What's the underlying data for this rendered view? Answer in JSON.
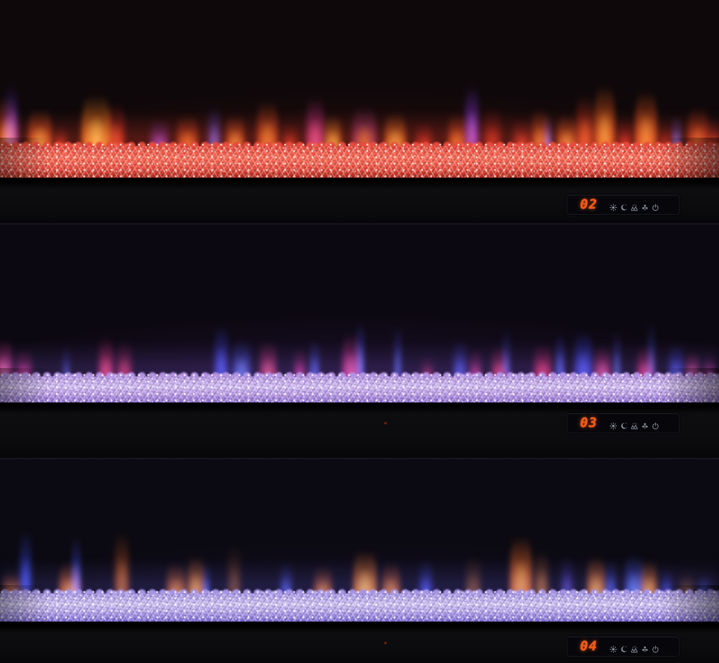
{
  "scene": {
    "title": "Linear electric fireplace shown in three flame color modes",
    "strips": [
      {
        "name": "flame-mode-2-red",
        "display_value": "02",
        "bed": {
          "top": "#e84a3c",
          "bright": "#ff6a55",
          "low": "#b02618",
          "glow": "rgba(255,70,45,0.32)",
          "sparkle": "rgba(255,225,215,0.85)",
          "base_tint": "rgba(150,30,22,0.30)",
          "base_color": "#0e080a"
        },
        "flames": [
          [
            -6,
            30,
            92,
            "#ff9a3c",
            "#dd3a12",
            0.95
          ],
          [
            6,
            20,
            112,
            "#8a6aff",
            "#4a2cd8",
            0.8
          ],
          [
            40,
            34,
            72,
            "#ffc04a",
            "#ff5a1a",
            0.95
          ],
          [
            76,
            20,
            46,
            "#ef4722",
            "#a01a10",
            0.9
          ],
          [
            116,
            42,
            96,
            "#ffd75a",
            "#ff7c16",
            1
          ],
          [
            152,
            26,
            82,
            "#ff5a2e",
            "#c02012",
            0.9
          ],
          [
            214,
            26,
            56,
            "#b05ae8",
            "#6a2cc0",
            0.85
          ],
          [
            252,
            30,
            62,
            "#ff8c2a",
            "#e0441a",
            0.9
          ],
          [
            296,
            18,
            76,
            "#6a78ff",
            "#3340d0",
            0.85
          ],
          [
            322,
            26,
            62,
            "#ffb144",
            "#ff5e1c",
            0.9
          ],
          [
            366,
            30,
            86,
            "#ff9a30",
            "#e04a16",
            0.9
          ],
          [
            402,
            22,
            50,
            "#e8401f",
            "#a51a0f",
            0.85
          ],
          [
            436,
            26,
            92,
            "#ff5fae",
            "#cf2a8c",
            0.85
          ],
          [
            462,
            24,
            62,
            "#ffd24f",
            "#ff8c1c",
            0.9
          ],
          [
            502,
            34,
            76,
            "#ff8c2a",
            "#b23a8a",
            0.85
          ],
          [
            548,
            30,
            66,
            "#ffc84e",
            "#ff7a18",
            0.9
          ],
          [
            592,
            24,
            52,
            "#ea3a20",
            "#a81710",
            0.85
          ],
          [
            638,
            26,
            66,
            "#ff8e2c",
            "#df4816",
            0.9
          ],
          [
            662,
            20,
            112,
            "#c06aff",
            "#7a2ce0",
            0.9
          ],
          [
            688,
            26,
            76,
            "#d5301c",
            "#8a140c",
            0.85
          ],
          [
            730,
            26,
            56,
            "#ea4a2a",
            "#b02012",
            0.85
          ],
          [
            757,
            24,
            72,
            "#ff9a3e",
            "#e05014",
            0.9
          ],
          [
            774,
            13,
            62,
            "#6a7aff",
            "#3545d2",
            0.8
          ],
          [
            793,
            28,
            62,
            "#ffb347",
            "#ff681a",
            0.9
          ],
          [
            820,
            26,
            96,
            "#ff6e2c",
            "#d02f10",
            0.9
          ],
          [
            846,
            30,
            112,
            "#ffbb42",
            "#ff5a12",
            0.95
          ],
          [
            879,
            22,
            56,
            "#ea3a20",
            "#a81610",
            0.85
          ],
          [
            904,
            32,
            102,
            "#ffa83e",
            "#ff5a16",
            0.95
          ],
          [
            938,
            20,
            50,
            "#da301a",
            "#921408",
            0.8
          ],
          [
            956,
            15,
            62,
            "#6e7eff",
            "#3a48d6",
            0.8
          ],
          [
            979,
            30,
            76,
            "#ff7e30",
            "#d83a12",
            0.9
          ],
          [
            1006,
            22,
            56,
            "#ea481f",
            "#aa1c0e",
            0.85
          ]
        ]
      },
      {
        "name": "flame-mode-3-purple",
        "display_value": "03",
        "bed": {
          "top": "#b392e4",
          "bright": "#d4bcf6",
          "low": "#8f6fd4",
          "glow": "rgba(150,110,255,0.22)",
          "sparkle": "rgba(255,255,255,0.85)",
          "base_tint": "rgba(110,62,190,0.22)",
          "base_color": "#0c0811"
        },
        "flames": [
          [
            -8,
            26,
            72,
            "#ff7ab4",
            "#dd2f88",
            0.9
          ],
          [
            22,
            24,
            56,
            "#ea399c",
            "#ab1f68",
            0.85
          ],
          [
            88,
            13,
            62,
            "#5a6aff",
            "#3240cc",
            0.5
          ],
          [
            140,
            22,
            76,
            "#ff4a70",
            "#cc2058",
            0.9
          ],
          [
            166,
            22,
            70,
            "#ea3a5e",
            "#a41844",
            0.85
          ],
          [
            305,
            20,
            96,
            "#4a5aff",
            "#2a34cc",
            0.9
          ],
          [
            331,
            26,
            72,
            "#6c8cff",
            "#3446dd",
            0.85
          ],
          [
            370,
            24,
            70,
            "#ff5a80",
            "#cc2a5e",
            0.85
          ],
          [
            418,
            18,
            58,
            "#ea3a9c",
            "#ab1f68",
            0.8
          ],
          [
            440,
            16,
            72,
            "#5a6aff",
            "#3240cc",
            0.75
          ],
          [
            487,
            26,
            82,
            "#ff57a2",
            "#ce2a7e",
            0.9
          ],
          [
            506,
            14,
            102,
            "#6a7aff",
            "#3443d8",
            0.75
          ],
          [
            560,
            13,
            96,
            "#5a7aff",
            "#2f3ed2",
            0.6
          ],
          [
            600,
            18,
            44,
            "#ea3a5e",
            "#a41844",
            0.7
          ],
          [
            645,
            20,
            72,
            "#4a5af2",
            "#2a35bf",
            0.85
          ],
          [
            668,
            18,
            56,
            "#ea399c",
            "#ab1f68",
            0.8
          ],
          [
            700,
            22,
            62,
            "#ff4a6e",
            "#c41f50",
            0.85
          ],
          [
            714,
            14,
            88,
            "#5a6aff",
            "#3240cc",
            0.6
          ],
          [
            760,
            26,
            66,
            "#ff3a6c",
            "#bd1848",
            0.9
          ],
          [
            790,
            15,
            82,
            "#5a6aff",
            "#3040cc",
            0.75
          ],
          [
            818,
            26,
            86,
            "#4a5aff",
            "#2836d6",
            0.9
          ],
          [
            846,
            24,
            62,
            "#ff5a9e",
            "#d62a76",
            0.85
          ],
          [
            872,
            13,
            86,
            "#6a8aff",
            "#3a4adf",
            0.55
          ],
          [
            907,
            24,
            62,
            "#ff4a8e",
            "#c92064",
            0.85
          ],
          [
            921,
            13,
            102,
            "#5a7aff",
            "#3344d4",
            0.5
          ],
          [
            952,
            22,
            66,
            "#4a5af2",
            "#2a35c4",
            0.85
          ],
          [
            976,
            20,
            52,
            "#ff6aae",
            "#d6347a",
            0.8
          ],
          [
            1001,
            18,
            46,
            "#ea399c",
            "#ab1f68",
            0.75
          ]
        ]
      },
      {
        "name": "flame-mode-4-blue-orange",
        "display_value": "04",
        "bed": {
          "top": "#a694e8",
          "bright": "#cfc2f6",
          "low": "#7a68d4",
          "glow": "rgba(120,110,250,0.20)",
          "sparkle": "rgba(255,255,255,0.85)",
          "base_tint": "rgba(86,70,200,0.18)",
          "base_color": "#0b0911"
        },
        "flames": [
          [
            4,
            26,
            46,
            "#ff9a38",
            "#dd5f16",
            0.85
          ],
          [
            28,
            17,
            116,
            "#4a5aff",
            "#2836cc",
            0.9
          ],
          [
            84,
            30,
            62,
            "#ffa83e",
            "#ff6a18",
            0.9
          ],
          [
            101,
            15,
            106,
            "#5a6aff",
            "#3040d4",
            0.8
          ],
          [
            163,
            21,
            112,
            "#ff8c2a",
            "#d25510",
            0.7
          ],
          [
            237,
            28,
            62,
            "#ff9a36",
            "#dd6018",
            0.85
          ],
          [
            267,
            24,
            72,
            "#ffb347",
            "#ff7a1e",
            0.9
          ],
          [
            287,
            13,
            62,
            "#5a6aff",
            "#3240cc",
            0.75
          ],
          [
            324,
            19,
            92,
            "#d8792a",
            "#9a4e10",
            0.5
          ],
          [
            399,
            17,
            62,
            "#5a6aff",
            "#3240d2",
            0.8
          ],
          [
            447,
            26,
            56,
            "#ff9a36",
            "#dd6018",
            0.85
          ],
          [
            503,
            34,
            82,
            "#ffc24e",
            "#ff7a16",
            0.95
          ],
          [
            544,
            26,
            62,
            "#ff9a36",
            "#e66418",
            0.85
          ],
          [
            597,
            19,
            66,
            "#4a5aff",
            "#2a34c8",
            0.85
          ],
          [
            663,
            22,
            72,
            "#d87c2c",
            "#a2550f",
            0.55
          ],
          [
            726,
            32,
            106,
            "#ffab3e",
            "#ff6a12",
            0.95
          ],
          [
            761,
            20,
            82,
            "#ea8a2c",
            "#b25a10",
            0.7
          ],
          [
            799,
            17,
            72,
            "#6a5ae8",
            "#4030bd",
            0.7
          ],
          [
            836,
            26,
            72,
            "#ffb347",
            "#ff7a1c",
            0.9
          ],
          [
            861,
            17,
            66,
            "#5a6aff",
            "#3240d2",
            0.8
          ],
          [
            890,
            26,
            76,
            "#6c8cff",
            "#3a4ae0",
            0.9
          ],
          [
            912,
            24,
            66,
            "#ffb347",
            "#ff7a1c",
            0.9
          ],
          [
            941,
            17,
            52,
            "#4a5aff",
            "#2a34c8",
            0.8
          ],
          [
            967,
            22,
            46,
            "#da8a2c",
            "#a0570e",
            0.55
          ],
          [
            994,
            17,
            42,
            "#5a6aff",
            "#3545cc",
            0.7
          ]
        ]
      }
    ],
    "panel": {
      "digit_color": "#ff5714",
      "digit_glow": "rgba(255,90,20,0.8)",
      "icon_color": "#9aa3b2",
      "icons": [
        {
          "name": "brightness-icon"
        },
        {
          "name": "sleep-timer-icon"
        },
        {
          "name": "flame-effect-icon"
        },
        {
          "name": "fan-icon"
        },
        {
          "name": "power-icon"
        }
      ]
    }
  }
}
